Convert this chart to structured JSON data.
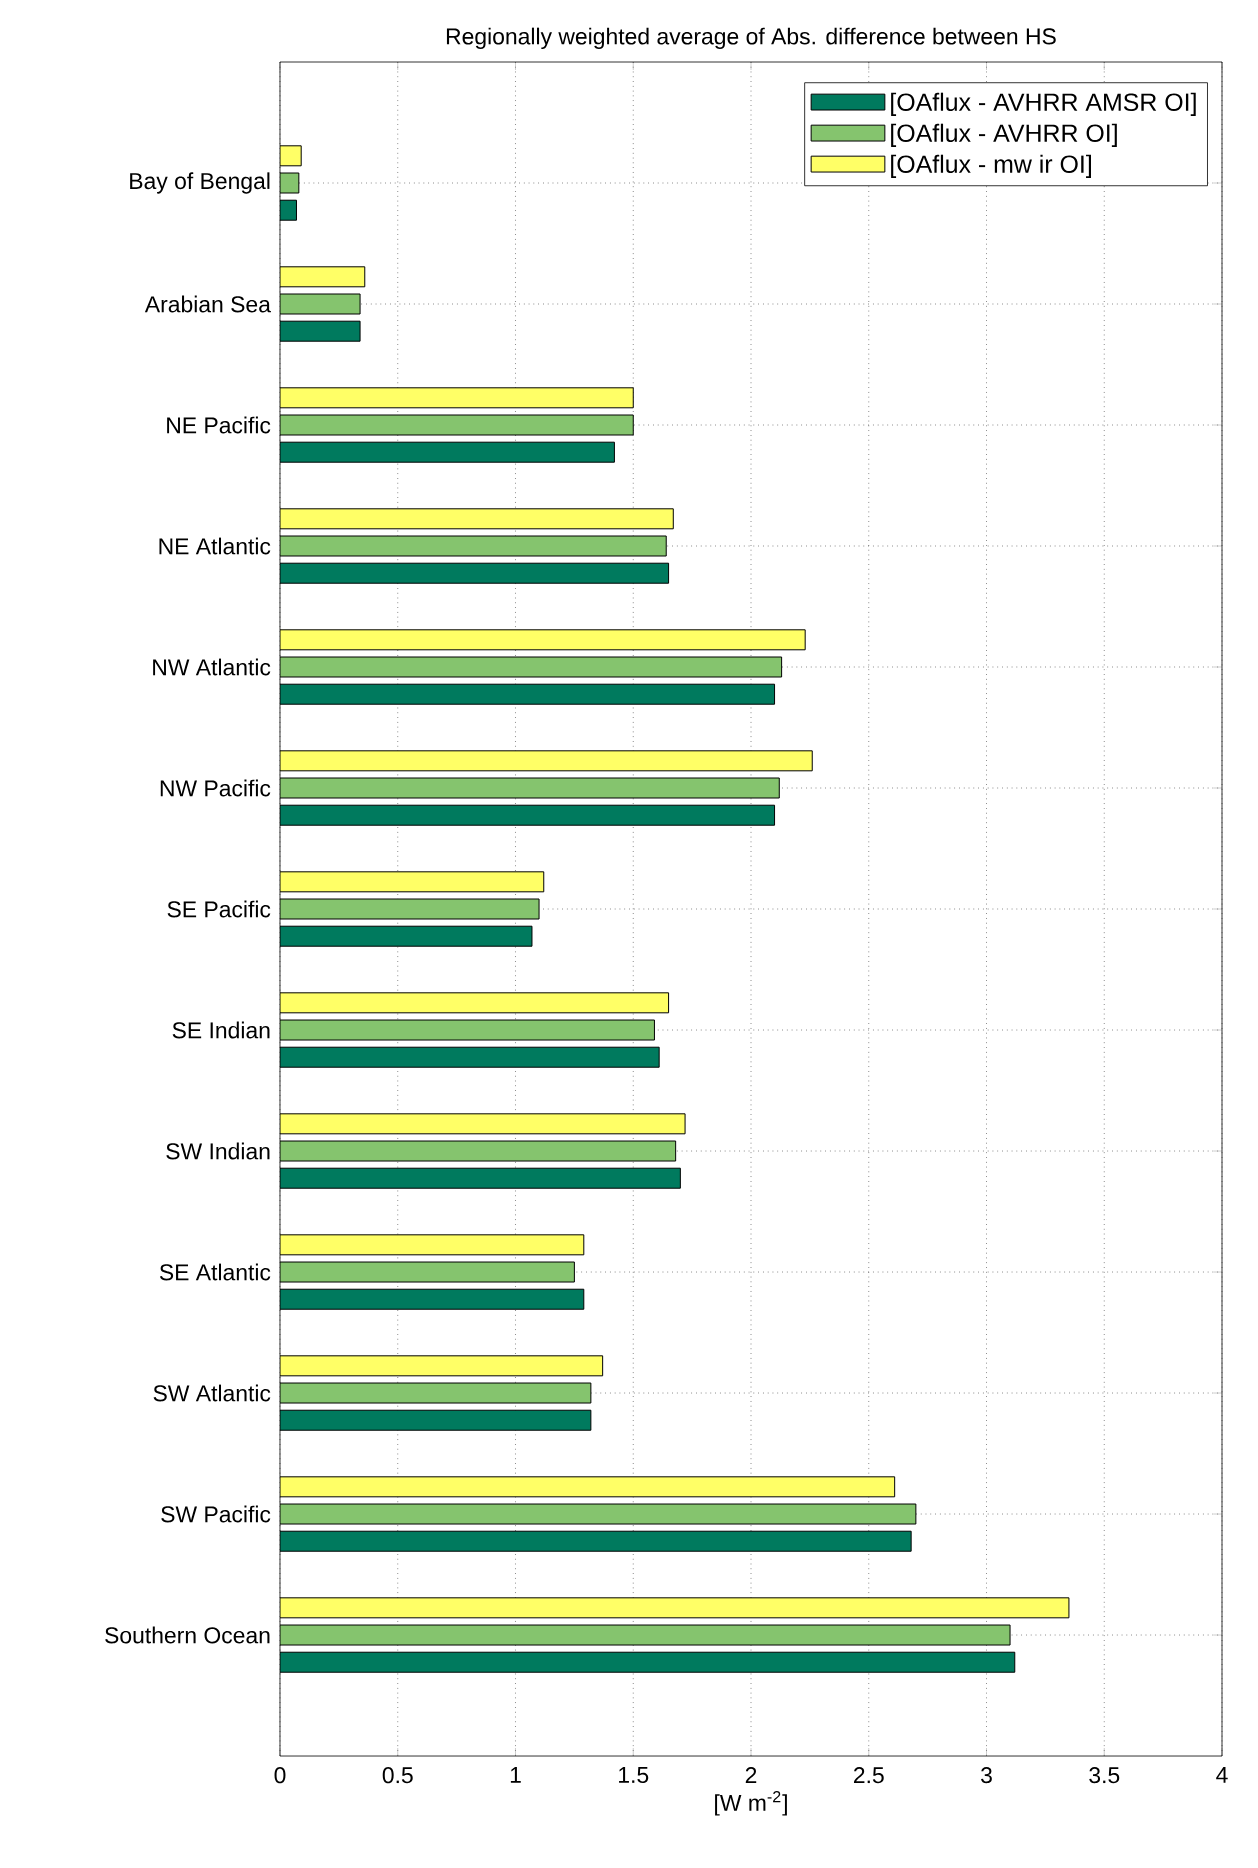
{
  "chart_data": {
    "type": "bar",
    "orientation": "horizontal",
    "title": "Regionally weighted average of Abs. difference between HS",
    "xlabel": "[W m$^{-2}$]",
    "categories": [
      "Bay of Bengal",
      "Arabian Sea",
      "NE Pacific",
      "NE Atlantic",
      "NW Atlantic",
      "NW Pacific",
      "SE Pacific",
      "SE Indian",
      "SW Indian",
      "SE Atlantic",
      "SW Atlantic",
      "SW Pacific",
      "Southern Ocean"
    ],
    "series": [
      {
        "name": "[OAflux - AVHRR AMSR OI]",
        "color": "#007a5e",
        "values": [
          0.07,
          0.34,
          1.42,
          1.65,
          2.1,
          2.1,
          1.07,
          1.61,
          1.7,
          1.29,
          1.32,
          2.68,
          3.12
        ]
      },
      {
        "name": "[OAflux - AVHRR OI]",
        "color": "#85c46e",
        "values": [
          0.08,
          0.34,
          1.5,
          1.64,
          2.13,
          2.12,
          1.1,
          1.59,
          1.68,
          1.25,
          1.32,
          2.7,
          3.1
        ]
      },
      {
        "name": "[OAflux - mw ir OI]",
        "color": "#ffff66",
        "values": [
          0.09,
          0.36,
          1.5,
          1.67,
          2.23,
          2.26,
          1.12,
          1.65,
          1.72,
          1.29,
          1.37,
          2.61,
          3.35
        ]
      }
    ],
    "xlim": [
      0,
      4
    ],
    "xticks": [
      0,
      0.5,
      1,
      1.5,
      2,
      2.5,
      3,
      3.5,
      4
    ],
    "grid": true,
    "legend": "top right"
  }
}
